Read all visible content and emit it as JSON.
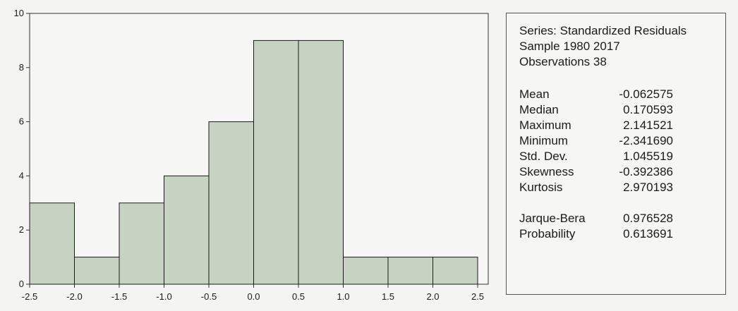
{
  "chart_data": {
    "type": "bar",
    "histogram": true,
    "bin_edges": [
      -2.5,
      -2.0,
      -1.5,
      -1.0,
      -0.5,
      0.0,
      0.5,
      1.0,
      1.5,
      2.0,
      2.5
    ],
    "values": [
      3,
      1,
      3,
      4,
      6,
      9,
      9,
      1,
      1,
      1
    ],
    "xlim": [
      -2.5,
      2.5
    ],
    "ylim": [
      0,
      10
    ],
    "x_ticks": [
      "-2.5",
      "-2.0",
      "-1.5",
      "-1.0",
      "-0.5",
      "0.0",
      "0.5",
      "1.0",
      "1.5",
      "2.0",
      "2.5"
    ],
    "y_ticks": [
      "0",
      "2",
      "4",
      "6",
      "8",
      "10"
    ],
    "title": "",
    "xlabel": "",
    "ylabel": "",
    "grid": false,
    "bar_color": "#c6d3c2"
  },
  "stats": {
    "series": "Series: Standardized Residuals",
    "sample": "Sample 1980 2017",
    "observations": "Observations 38",
    "rows": [
      {
        "label": "Mean",
        "value": "-0.062575"
      },
      {
        "label": "Median",
        "value": "0.170593"
      },
      {
        "label": "Maximum",
        "value": "2.141521"
      },
      {
        "label": "Minimum",
        "value": "-2.341690"
      },
      {
        "label": "Std. Dev.",
        "value": "1.045519"
      },
      {
        "label": "Skewness",
        "value": "-0.392386"
      },
      {
        "label": "Kurtosis",
        "value": "2.970193"
      }
    ],
    "tests": [
      {
        "label": "Jarque-Bera",
        "value": "0.976528"
      },
      {
        "label": "Probability",
        "value": "0.613691"
      }
    ]
  }
}
